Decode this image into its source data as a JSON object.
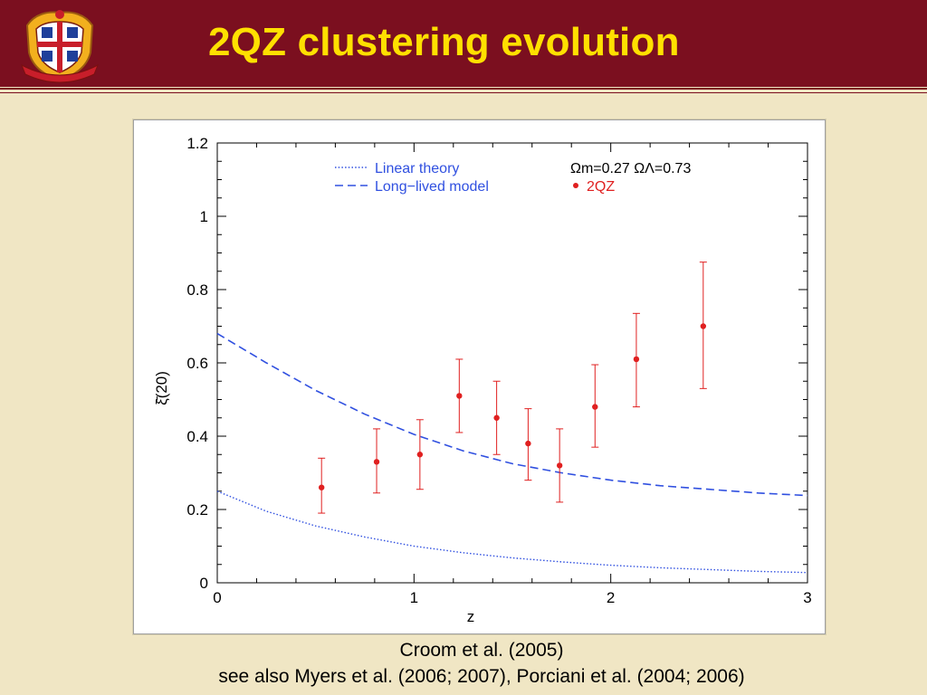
{
  "slide": {
    "title": "2QZ clustering evolution",
    "logo_icon": "university-crest-icon",
    "caption_line1": "Croom et al. (2005)",
    "caption_line2": "see also Myers et al. (2006; 2007), Porciani et al. (2004; 2006)"
  },
  "colors": {
    "header": "#7b0f1f",
    "title": "#ffe000",
    "background": "#f0e6c4",
    "data_points": "#e02020",
    "model_lines": "#3050e0"
  },
  "chart_data": {
    "type": "scatter",
    "xlabel": "z",
    "ylabel": "ξ̄(20)",
    "xlim": [
      0,
      3
    ],
    "ylim": [
      0,
      1.2
    ],
    "x_ticks": [
      "0",
      "1",
      "2",
      "3"
    ],
    "y_ticks": [
      "0",
      "0.2",
      "0.4",
      "0.6",
      "0.8",
      "1",
      "1.2"
    ],
    "cosmology_label": "Ωm=0.27  ΩΛ=0.73",
    "legend_placement": "top",
    "series": [
      {
        "name": "Linear theory",
        "style": "dotted",
        "x": [
          0,
          0.25,
          0.5,
          0.75,
          1.0,
          1.25,
          1.5,
          1.75,
          2.0,
          2.25,
          2.5,
          2.75,
          3.0
        ],
        "y": [
          0.25,
          0.195,
          0.155,
          0.125,
          0.1,
          0.082,
          0.068,
          0.057,
          0.048,
          0.041,
          0.036,
          0.031,
          0.028
        ]
      },
      {
        "name": "Long−lived model",
        "style": "dashed",
        "x": [
          0,
          0.25,
          0.5,
          0.75,
          1.0,
          1.25,
          1.5,
          1.75,
          2.0,
          2.25,
          2.5,
          2.75,
          3.0
        ],
        "y": [
          0.68,
          0.6,
          0.525,
          0.46,
          0.405,
          0.36,
          0.325,
          0.3,
          0.28,
          0.265,
          0.255,
          0.245,
          0.238
        ]
      },
      {
        "name": "2QZ",
        "style": "points",
        "x": [
          0.53,
          0.81,
          1.03,
          1.23,
          1.42,
          1.58,
          1.74,
          1.92,
          2.13,
          2.47
        ],
        "y": [
          0.26,
          0.33,
          0.35,
          0.51,
          0.45,
          0.38,
          0.32,
          0.48,
          0.61,
          0.7
        ],
        "yerr_low": [
          0.19,
          0.245,
          0.255,
          0.41,
          0.35,
          0.28,
          0.22,
          0.37,
          0.48,
          0.53
        ],
        "yerr_high": [
          0.34,
          0.42,
          0.445,
          0.61,
          0.55,
          0.475,
          0.42,
          0.595,
          0.735,
          0.875
        ]
      }
    ]
  }
}
